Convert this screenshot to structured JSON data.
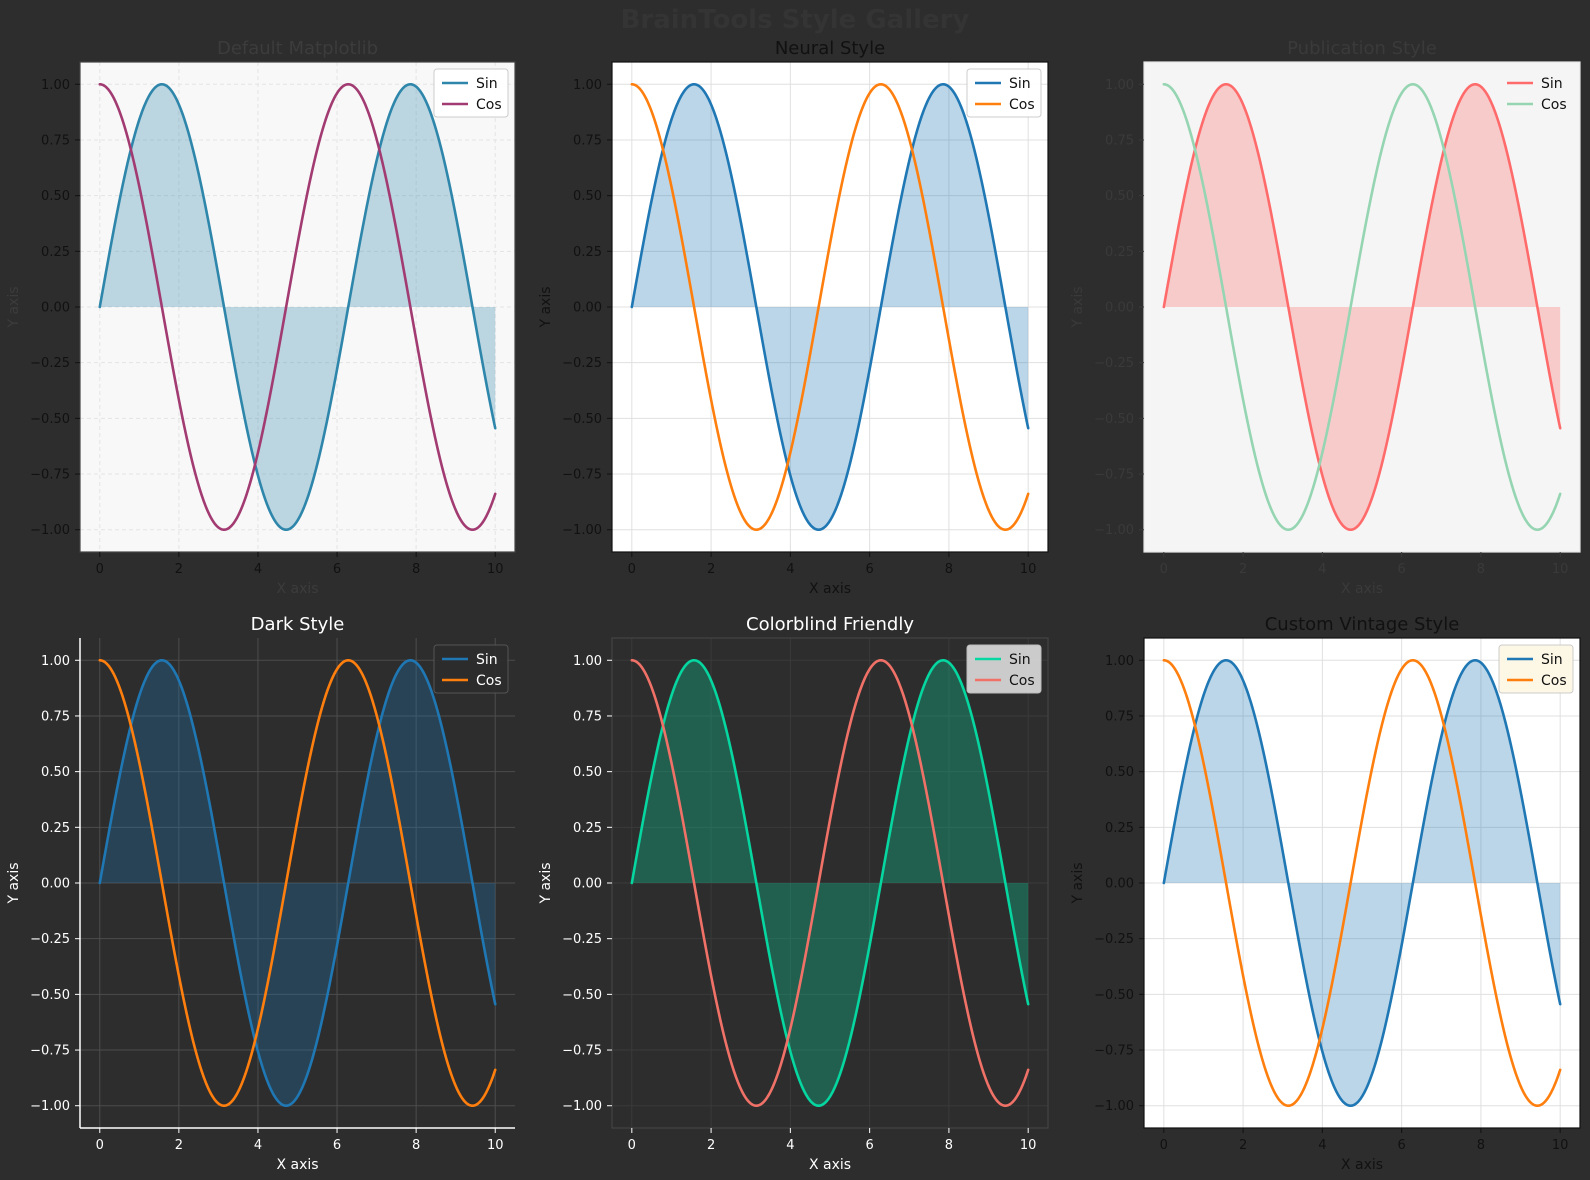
{
  "page": {
    "title": "BrainTools Style Gallery",
    "background": "#2d2d2d"
  },
  "chart_data": [
    {
      "type": "line",
      "title": "Default Matplotlib",
      "xlabel": "X axis",
      "ylabel": "Y axis",
      "xlim": [
        -0.5,
        10.5
      ],
      "ylim": [
        -1.1,
        1.1
      ],
      "x_ticks": [
        0,
        2,
        4,
        6,
        8,
        10
      ],
      "y_ticks": [
        1.0,
        0.75,
        0.5,
        0.25,
        0.0,
        -0.25,
        -0.5,
        -0.75,
        -1.0
      ],
      "x_tick_labels": [
        "0",
        "2",
        "4",
        "6",
        "8",
        "10"
      ],
      "y_tick_labels": [
        "1.00",
        "0.75",
        "0.50",
        "0.25",
        "0.00",
        "−0.25",
        "−0.50",
        "−0.75",
        "−1.00"
      ],
      "grid": true,
      "legend": "top-right",
      "series": [
        {
          "name": "Sin",
          "function": "sin",
          "x_range": [
            0,
            10
          ],
          "color": "#2e86ab",
          "fill": true,
          "fill_color": "#2e86ab"
        },
        {
          "name": "Cos",
          "function": "cos",
          "x_range": [
            0,
            10
          ],
          "color": "#a23b72"
        }
      ],
      "style": {
        "axes_bg": "#f8f8f8",
        "frame_color": "#444444",
        "tick_color": "#111111",
        "title_color": "#3c3c3c",
        "label_color": "#3c3c3c",
        "grid_color": "#e4e4e4",
        "grid_dash": "4,3",
        "legend_bg": "#ffffff",
        "legend_edge": "#cccccc",
        "legend_text": "#111111",
        "font": "sans"
      }
    },
    {
      "type": "line",
      "title": "Neural Style",
      "xlabel": "X axis",
      "ylabel": "Y axis",
      "xlim": [
        -0.5,
        10.5
      ],
      "ylim": [
        -1.1,
        1.1
      ],
      "x_ticks": [
        0,
        2,
        4,
        6,
        8,
        10
      ],
      "y_ticks": [
        1.0,
        0.75,
        0.5,
        0.25,
        0.0,
        -0.25,
        -0.5,
        -0.75,
        -1.0
      ],
      "x_tick_labels": [
        "0",
        "2",
        "4",
        "6",
        "8",
        "10"
      ],
      "y_tick_labels": [
        "1.00",
        "0.75",
        "0.50",
        "0.25",
        "0.00",
        "−0.25",
        "−0.50",
        "−0.75",
        "−1.00"
      ],
      "grid": true,
      "legend": "top-right",
      "series": [
        {
          "name": "Sin",
          "function": "sin",
          "x_range": [
            0,
            10
          ],
          "color": "#1f77b4",
          "fill": true,
          "fill_color": "#1f77b4"
        },
        {
          "name": "Cos",
          "function": "cos",
          "x_range": [
            0,
            10
          ],
          "color": "#ff7f0e"
        }
      ],
      "style": {
        "axes_bg": "#ffffff",
        "frame_color": "#111111",
        "tick_color": "#111111",
        "title_color": "#111111",
        "label_color": "#111111",
        "grid_color": "#e0e0e0",
        "grid_dash": "",
        "legend_bg": "#ffffff",
        "legend_edge": "#cccccc",
        "legend_text": "#111111",
        "font": "sans"
      }
    },
    {
      "type": "line",
      "title": "Publication Style",
      "xlabel": "X axis",
      "ylabel": "Y axis",
      "xlim": [
        -0.5,
        10.5
      ],
      "ylim": [
        -1.1,
        1.1
      ],
      "x_ticks": [
        0,
        2,
        4,
        6,
        8,
        10
      ],
      "y_ticks": [
        1.0,
        0.75,
        0.5,
        0.25,
        0.0,
        -0.25,
        -0.5,
        -0.75,
        -1.0
      ],
      "x_tick_labels": [
        "0",
        "2",
        "4",
        "6",
        "8",
        "10"
      ],
      "y_tick_labels": [
        "1.00",
        "0.75",
        "0.50",
        "0.25",
        "0.00",
        "−0.25",
        "−0.50",
        "−0.75",
        "−1.00"
      ],
      "grid": false,
      "legend": "top-right",
      "series": [
        {
          "name": "Sin",
          "function": "sin",
          "x_range": [
            0,
            10
          ],
          "color": "#ff6b6b",
          "fill": true,
          "fill_color": "#ff6b6b"
        },
        {
          "name": "Cos",
          "function": "cos",
          "x_range": [
            0,
            10
          ],
          "color": "#95d5b2"
        }
      ],
      "style": {
        "axes_bg": "#f5f5f5",
        "frame_color": "#e6e6e6",
        "tick_color": "#3a3a3a",
        "title_color": "#3a3a3a",
        "label_color": "#3a3a3a",
        "grid_color": "#e4e4e4",
        "grid_dash": "",
        "legend_bg": "none",
        "legend_edge": "none",
        "legend_text": "#111111",
        "font": "serif"
      }
    },
    {
      "type": "line",
      "title": "Dark Style",
      "xlabel": "X axis",
      "ylabel": "Y axis",
      "xlim": [
        -0.5,
        10.5
      ],
      "ylim": [
        -1.1,
        1.1
      ],
      "x_ticks": [
        0,
        2,
        4,
        6,
        8,
        10
      ],
      "y_ticks": [
        1.0,
        0.75,
        0.5,
        0.25,
        0.0,
        -0.25,
        -0.5,
        -0.75,
        -1.0
      ],
      "x_tick_labels": [
        "0",
        "2",
        "4",
        "6",
        "8",
        "10"
      ],
      "y_tick_labels": [
        "1.00",
        "0.75",
        "0.50",
        "0.25",
        "0.00",
        "−0.25",
        "−0.50",
        "−0.75",
        "−1.00"
      ],
      "grid": true,
      "legend": "top-right",
      "series": [
        {
          "name": "Sin",
          "function": "sin",
          "x_range": [
            0,
            10
          ],
          "color": "#1f77b4",
          "fill": true,
          "fill_color": "#1f77b4"
        },
        {
          "name": "Cos",
          "function": "cos",
          "x_range": [
            0,
            10
          ],
          "color": "#ff7f0e"
        }
      ],
      "style": {
        "axes_bg": "#2d2d2d",
        "frame_color": "#ffffff",
        "tick_color": "#ffffff",
        "title_color": "#ffffff",
        "label_color": "#ffffff",
        "grid_color": "#4d4d4d",
        "grid_dash": "",
        "legend_bg": "#2d2d2d",
        "legend_edge": "#555555",
        "legend_text": "#ffffff",
        "font": "serif",
        "open_frame": true
      }
    },
    {
      "type": "line",
      "title": "Colorblind Friendly",
      "xlabel": "X axis",
      "ylabel": "Y axis",
      "xlim": [
        -0.5,
        10.5
      ],
      "ylim": [
        -1.1,
        1.1
      ],
      "x_ticks": [
        0,
        2,
        4,
        6,
        8,
        10
      ],
      "y_ticks": [
        1.0,
        0.75,
        0.5,
        0.25,
        0.0,
        -0.25,
        -0.5,
        -0.75,
        -1.0
      ],
      "x_tick_labels": [
        "0",
        "2",
        "4",
        "6",
        "8",
        "10"
      ],
      "y_tick_labels": [
        "1.00",
        "0.75",
        "0.50",
        "0.25",
        "0.00",
        "−0.25",
        "−0.50",
        "−0.75",
        "−1.00"
      ],
      "grid": true,
      "legend": "top-right",
      "series": [
        {
          "name": "Sin",
          "function": "sin",
          "x_range": [
            0,
            10
          ],
          "color": "#06d6a0",
          "fill": true,
          "fill_color": "#06d6a0"
        },
        {
          "name": "Cos",
          "function": "cos",
          "x_range": [
            0,
            10
          ],
          "color": "#f07167"
        }
      ],
      "style": {
        "axes_bg": "#2d2d2d",
        "frame_color": "#444444",
        "tick_color": "#ffffff",
        "title_color": "#ffffff",
        "label_color": "#ffffff",
        "grid_color": "#3a3a3a",
        "grid_dash": "",
        "legend_bg": "#d9d9d9",
        "legend_edge": "#bbbbbb",
        "legend_text": "#111111",
        "font": "sans"
      }
    },
    {
      "type": "line",
      "title": "Custom Vintage Style",
      "xlabel": "X axis",
      "ylabel": "Y axis",
      "xlim": [
        -0.5,
        10.5
      ],
      "ylim": [
        -1.1,
        1.1
      ],
      "x_ticks": [
        0,
        2,
        4,
        6,
        8,
        10
      ],
      "y_ticks": [
        1.0,
        0.75,
        0.5,
        0.25,
        0.0,
        -0.25,
        -0.5,
        -0.75,
        -1.0
      ],
      "x_tick_labels": [
        "0",
        "2",
        "4",
        "6",
        "8",
        "10"
      ],
      "y_tick_labels": [
        "1.00",
        "0.75",
        "0.50",
        "0.25",
        "0.00",
        "−0.25",
        "−0.50",
        "−0.75",
        "−1.00"
      ],
      "grid": true,
      "legend": "top-right",
      "series": [
        {
          "name": "Sin",
          "function": "sin",
          "x_range": [
            0,
            10
          ],
          "color": "#1f77b4",
          "fill": true,
          "fill_color": "#1f77b4"
        },
        {
          "name": "Cos",
          "function": "cos",
          "x_range": [
            0,
            10
          ],
          "color": "#ff7f0e"
        }
      ],
      "style": {
        "axes_bg": "#ffffff",
        "frame_color": "#111111",
        "tick_color": "#111111",
        "title_color": "#111111",
        "label_color": "#111111",
        "grid_color": "#e0e0e0",
        "grid_dash": "",
        "legend_bg": "#fdf6e3",
        "legend_edge": "#cccccc",
        "legend_text": "#111111",
        "font": "sans"
      }
    }
  ]
}
